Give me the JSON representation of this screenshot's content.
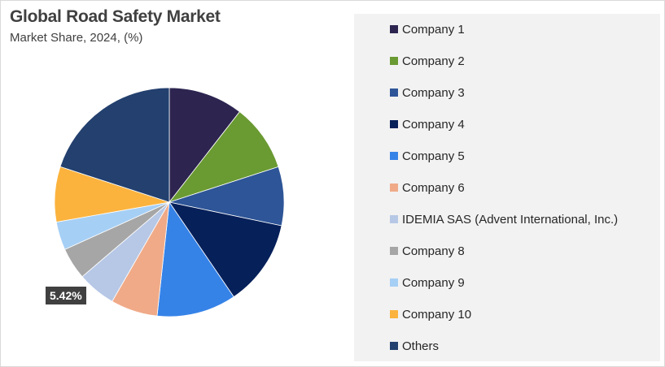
{
  "header": {
    "title": "Global Road Safety Market",
    "subtitle": "Market Share, 2024, (%)"
  },
  "chart_data": {
    "type": "pie",
    "title": "Global Road Safety Market",
    "subtitle": "Market Share, 2024, (%)",
    "slices": [
      {
        "label": "Company 1",
        "value": 10.5,
        "color": "#2d2550"
      },
      {
        "label": "Company 2",
        "value": 9.5,
        "color": "#6a9a32"
      },
      {
        "label": "Company 3",
        "value": 8.3,
        "color": "#2e5597"
      },
      {
        "label": "Company 4",
        "value": 12.2,
        "color": "#06205a"
      },
      {
        "label": "Company 5",
        "value": 11.2,
        "color": "#3683e8"
      },
      {
        "label": "Company 6",
        "value": 6.6,
        "color": "#f0aa88"
      },
      {
        "label": "IDEMIA SAS (Advent International, Inc.)",
        "value": 5.42,
        "color": "#b7c8e6"
      },
      {
        "label": "Company 8",
        "value": 4.5,
        "color": "#a6a6a6"
      },
      {
        "label": "Company 9",
        "value": 4.0,
        "color": "#a6cff5"
      },
      {
        "label": "Company 10",
        "value": 7.8,
        "color": "#fbb33e"
      },
      {
        "label": "Others",
        "value": 19.98,
        "color": "#23406e"
      }
    ],
    "data_labels": [
      {
        "slice": "IDEMIA SAS (Advent International, Inc.)",
        "text": "5.42%"
      }
    ],
    "legend_position": "right"
  }
}
